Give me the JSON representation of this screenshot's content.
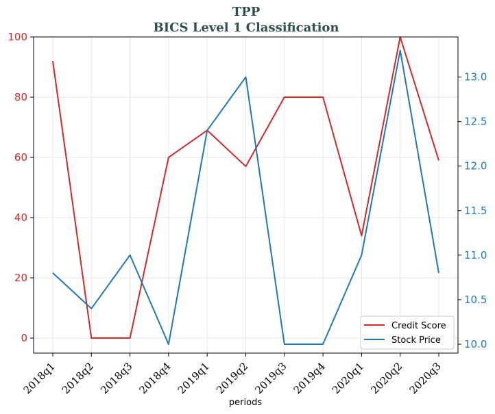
{
  "chart_data": {
    "type": "line",
    "title": "TPP",
    "subtitle": "BICS Level 1 Classification",
    "xlabel": "periods",
    "categories": [
      "2018q1",
      "2018q2",
      "2018q3",
      "2018q4",
      "2019q1",
      "2019q2",
      "2019q3",
      "2019q4",
      "2020q1",
      "2020q2",
      "2020q3"
    ],
    "series": [
      {
        "name": "Credit Score",
        "axis": "left",
        "color": "#d62728",
        "values": [
          92,
          0,
          0,
          60,
          69,
          57,
          80,
          80,
          34,
          100,
          59
        ]
      },
      {
        "name": "Stock Price",
        "axis": "right",
        "color": "#1f77b4",
        "values": [
          10.8,
          10.4,
          11.0,
          10.0,
          12.4,
          13.0,
          10.0,
          10.0,
          11.0,
          13.3,
          10.8
        ]
      }
    ],
    "left_axis": {
      "ylim": [
        -5,
        100
      ],
      "ticks": [
        "0",
        "20",
        "40",
        "60",
        "80",
        "100"
      ],
      "tick_values": [
        0,
        20,
        40,
        60,
        80,
        100
      ],
      "color": "#d62728"
    },
    "right_axis": {
      "ylim": [
        9.9,
        13.45
      ],
      "ticks": [
        "10.0",
        "10.5",
        "11.0",
        "11.5",
        "12.0",
        "12.5",
        "13.0"
      ],
      "tick_values": [
        10.0,
        10.5,
        11.0,
        11.5,
        12.0,
        12.5,
        13.0
      ],
      "color": "#1f77b4"
    },
    "grid": true,
    "legend_position": "bottom-right"
  }
}
